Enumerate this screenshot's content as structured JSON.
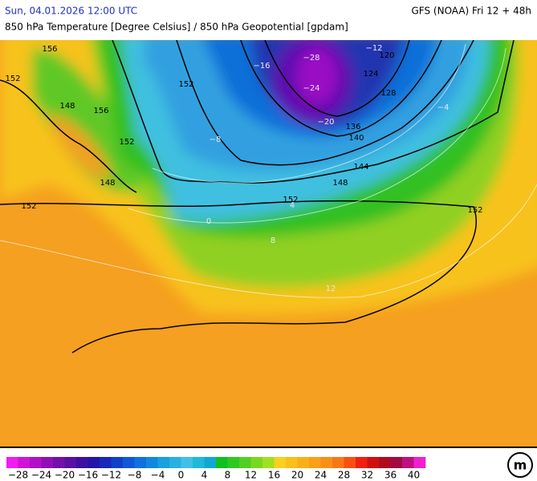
{
  "header": {
    "datetime": "Sun, 04.01.2026 12:00 UTC",
    "model": "GFS (NOAA) Fri 12 + 48h",
    "title": "850 hPa Temperature [Degree Celsius] / 850 hPa Geopotential [gpdam]"
  },
  "map": {
    "labels": [
      "156",
      "152",
      "152",
      "148",
      "156",
      "152",
      "152",
      "152",
      "152",
      "148",
      "148",
      "144",
      "140",
      "136",
      "128",
      "124",
      "120",
      "−28",
      "−24",
      "−20",
      "−16",
      "−12",
      "−8",
      "−4",
      "0",
      "4",
      "8",
      "12"
    ]
  },
  "colorbar": {
    "colors": [
      "#f01cf0",
      "#d014d8",
      "#b010c8",
      "#9010b8",
      "#7410a8",
      "#5a10a0",
      "#3c10a0",
      "#2414a8",
      "#1828b8",
      "#1040c8",
      "#1058d8",
      "#1070e0",
      "#1088e0",
      "#18a0e0",
      "#28b0e0",
      "#40c0e8",
      "#20b8d8",
      "#10a8d0",
      "#10c020",
      "#30c820",
      "#50d020",
      "#78d820",
      "#a0e020",
      "#f8d020",
      "#f8c018",
      "#f8b018",
      "#f8a018",
      "#f89018",
      "#f87818",
      "#f85010",
      "#f02010",
      "#d01010",
      "#b00c20",
      "#a00c40",
      "#c01080",
      "#f020d0"
    ],
    "labels": [
      "−28",
      "−24",
      "−20",
      "−16",
      "−12",
      "−8",
      "−4",
      "0",
      "4",
      "8",
      "12",
      "16",
      "20",
      "24",
      "28",
      "32",
      "36",
      "40"
    ]
  }
}
